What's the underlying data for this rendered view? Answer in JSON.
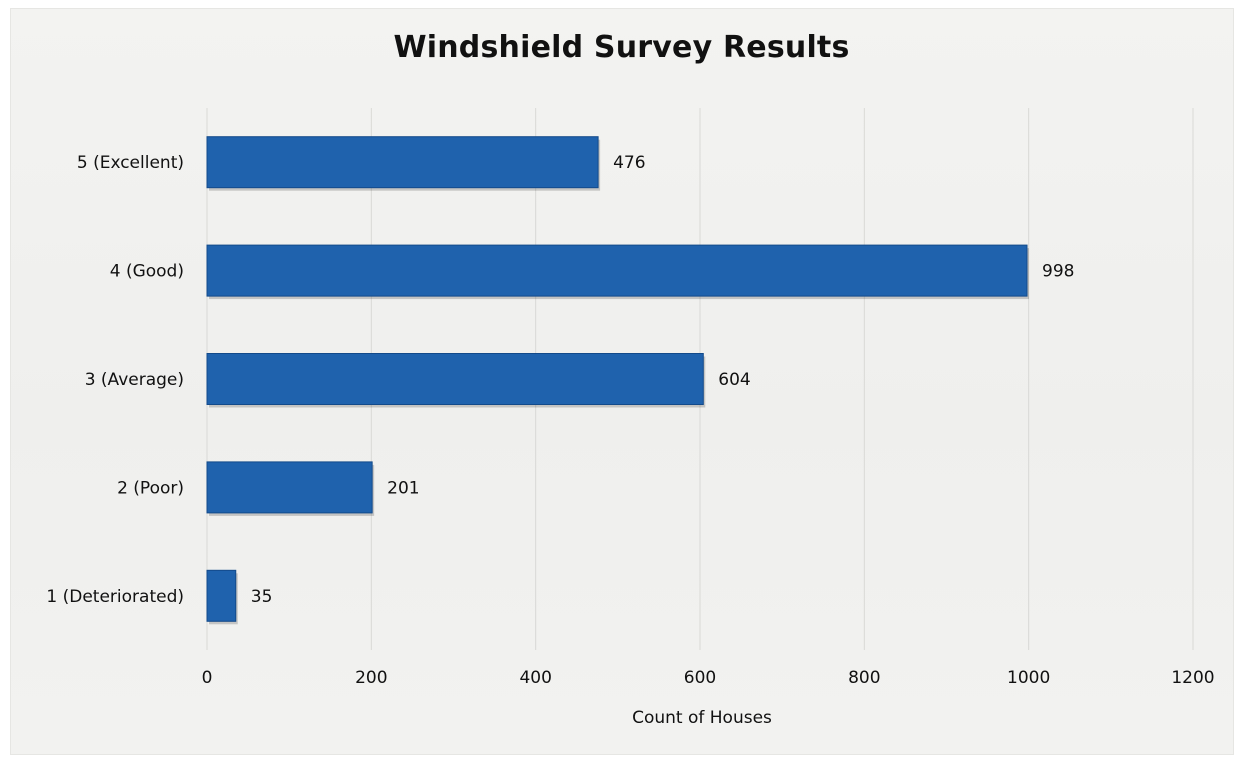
{
  "chart_data": {
    "type": "bar",
    "orientation": "horizontal",
    "title": "Windshield Survey Results",
    "xlabel": "Count of Houses",
    "ylabel": "",
    "categories": [
      "5 (Excellent)",
      "4 (Good)",
      "3 (Average)",
      "2 (Poor)",
      "1 (Deteriorated)"
    ],
    "values": [
      476,
      998,
      604,
      201,
      35
    ],
    "xlim": [
      0,
      1200
    ],
    "xticks": [
      0,
      200,
      400,
      600,
      800,
      1000,
      1200
    ],
    "xtick_labels": [
      "0",
      "200",
      "400",
      "600",
      "800",
      "1000",
      "1200"
    ],
    "grid": "vertical",
    "legend": "none",
    "data_labels": true,
    "colors": {
      "bar": "#1f62ad",
      "bar_dark": "#134a8a",
      "gridline": "#d9d9d6",
      "background": "#f0f0ee"
    }
  }
}
